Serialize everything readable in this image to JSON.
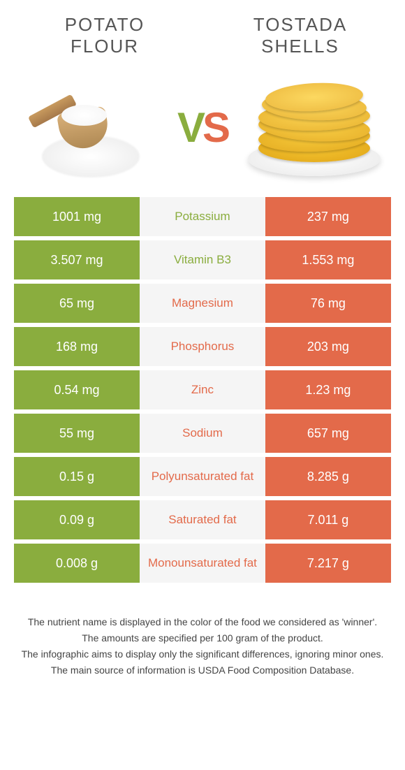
{
  "left_title_line1": "POTATO",
  "left_title_line2": "FLOUR",
  "right_title_line1": "TOSTADA",
  "right_title_line2": "SHELLS",
  "vs_v": "V",
  "vs_s": "S",
  "colors": {
    "left": "#8aad3e",
    "right": "#e36a4a",
    "mid_bg": "#f5f5f5"
  },
  "rows": [
    {
      "left": "1001 mg",
      "label": "Potassium",
      "right": "237 mg",
      "winner": "left"
    },
    {
      "left": "3.507 mg",
      "label": "Vitamin B3",
      "right": "1.553 mg",
      "winner": "left"
    },
    {
      "left": "65 mg",
      "label": "Magnesium",
      "right": "76 mg",
      "winner": "right"
    },
    {
      "left": "168 mg",
      "label": "Phosphorus",
      "right": "203 mg",
      "winner": "right"
    },
    {
      "left": "0.54 mg",
      "label": "Zinc",
      "right": "1.23 mg",
      "winner": "right"
    },
    {
      "left": "55 mg",
      "label": "Sodium",
      "right": "657 mg",
      "winner": "right"
    },
    {
      "left": "0.15 g",
      "label": "Polyunsaturated fat",
      "right": "8.285 g",
      "winner": "right"
    },
    {
      "left": "0.09 g",
      "label": "Saturated fat",
      "right": "7.011 g",
      "winner": "right"
    },
    {
      "left": "0.008 g",
      "label": "Monounsaturated fat",
      "right": "7.217 g",
      "winner": "right"
    }
  ],
  "footer": [
    "The nutrient name is displayed in the color of the food we considered as 'winner'.",
    "The amounts are specified per 100 gram of the product.",
    "The infographic aims to display only the significant differences, ignoring minor ones.",
    "The main source of information is USDA Food Composition Database."
  ]
}
